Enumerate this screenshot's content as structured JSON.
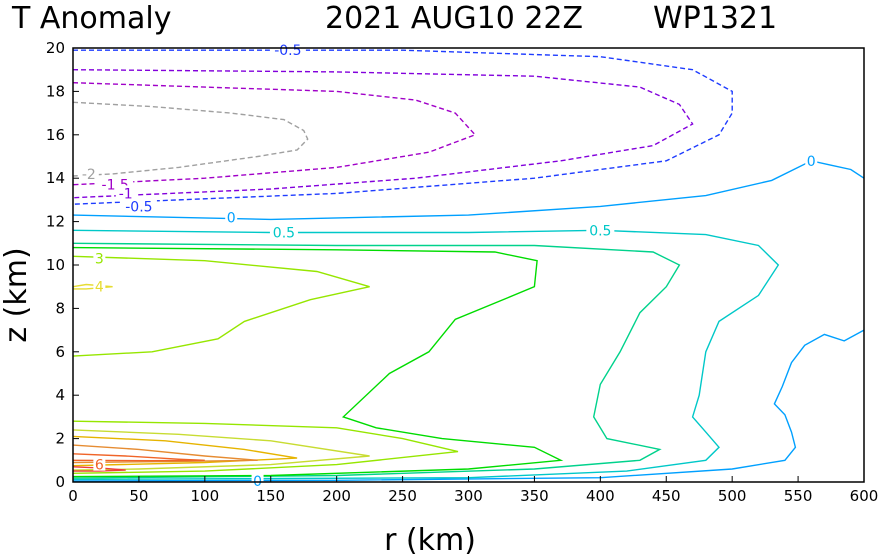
{
  "chart_data": {
    "type": "contour",
    "title_left": "T Anomaly",
    "title_date": "2021 AUG10 22Z",
    "title_storm": "WP1321",
    "xlabel": "r (km)",
    "ylabel": "z (km)",
    "xlim": [
      0,
      600
    ],
    "ylim": [
      0,
      20
    ],
    "xticks": [
      "0",
      "50",
      "100",
      "150",
      "200",
      "250",
      "300",
      "350",
      "400",
      "450",
      "500",
      "550",
      "600"
    ],
    "yticks": [
      "0",
      "2",
      "4",
      "6",
      "8",
      "10",
      "12",
      "14",
      "16",
      "18",
      "20"
    ],
    "contours": [
      {
        "level": "-2",
        "color": "#a0a0a0",
        "dashed": true,
        "points": [
          [
            0,
            17.5
          ],
          [
            60,
            17.3
          ],
          [
            120,
            17.0
          ],
          [
            160,
            16.7
          ],
          [
            175,
            16.2
          ],
          [
            178,
            15.8
          ],
          [
            170,
            15.3
          ],
          [
            140,
            15.0
          ],
          [
            80,
            14.5
          ],
          [
            30,
            14.2
          ],
          [
            0,
            14.1
          ]
        ],
        "labels": [
          {
            "text": "-2",
            "x": 12,
            "y": 14.2
          }
        ]
      },
      {
        "level": "-1.5",
        "color": "#a000c8",
        "dashed": true,
        "points": [
          [
            0,
            18.4
          ],
          [
            100,
            18.2
          ],
          [
            200,
            18.0
          ],
          [
            260,
            17.6
          ],
          [
            290,
            17.0
          ],
          [
            305,
            16.0
          ],
          [
            270,
            15.2
          ],
          [
            200,
            14.5
          ],
          [
            100,
            14.0
          ],
          [
            0,
            13.7
          ]
        ],
        "labels": [
          {
            "text": "-1.5",
            "x": 32,
            "y": 13.7
          }
        ]
      },
      {
        "level": "-1",
        "color": "#8200dc",
        "dashed": true,
        "points": [
          [
            0,
            19.0
          ],
          [
            200,
            18.9
          ],
          [
            350,
            18.7
          ],
          [
            430,
            18.2
          ],
          [
            460,
            17.4
          ],
          [
            470,
            16.5
          ],
          [
            440,
            15.5
          ],
          [
            370,
            14.8
          ],
          [
            260,
            14.0
          ],
          [
            150,
            13.5
          ],
          [
            0,
            13.1
          ]
        ],
        "labels": [
          {
            "text": "-1",
            "x": 40,
            "y": 13.3
          }
        ]
      },
      {
        "level": "-0.5",
        "color": "#1e3cff",
        "dashed": true,
        "points": [
          [
            0,
            19.9
          ],
          [
            250,
            19.9
          ],
          [
            400,
            19.6
          ],
          [
            470,
            19.0
          ],
          [
            500,
            18.0
          ],
          [
            500,
            17.0
          ],
          [
            490,
            16.0
          ],
          [
            450,
            14.8
          ],
          [
            350,
            14.0
          ],
          [
            200,
            13.3
          ],
          [
            0,
            12.8
          ]
        ],
        "labels": [
          {
            "text": "-0.5",
            "x": 50,
            "y": 12.7
          },
          {
            "text": "-0.5",
            "x": 163,
            "y": 19.9
          }
        ]
      },
      {
        "level": "0",
        "color": "#00a0ff",
        "dashed": false,
        "points": [
          [
            0,
            12.3
          ],
          [
            150,
            12.1
          ],
          [
            300,
            12.3
          ],
          [
            400,
            12.7
          ],
          [
            480,
            13.2
          ],
          [
            530,
            13.9
          ],
          [
            550,
            14.5
          ],
          [
            560,
            14.8
          ],
          [
            575,
            14.6
          ],
          [
            590,
            14.4
          ],
          [
            600,
            14.0
          ]
        ],
        "labels": [
          {
            "text": "0",
            "x": 120,
            "y": 12.2
          },
          {
            "text": "0",
            "x": 560,
            "y": 14.8
          }
        ]
      },
      {
        "level": "0",
        "color": "#00a0ff",
        "dashed": false,
        "points": [
          [
            0,
            0.05
          ],
          [
            200,
            0.08
          ],
          [
            400,
            0.2
          ],
          [
            500,
            0.6
          ],
          [
            540,
            1.0
          ],
          [
            548,
            1.6
          ],
          [
            545,
            2.3
          ],
          [
            540,
            3.1
          ],
          [
            532,
            3.6
          ],
          [
            538,
            4.4
          ],
          [
            545,
            5.5
          ],
          [
            555,
            6.3
          ],
          [
            570,
            6.8
          ],
          [
            585,
            6.5
          ],
          [
            600,
            7.0
          ]
        ],
        "labels": [
          {
            "text": "0",
            "x": 140,
            "y": 0.05
          }
        ]
      },
      {
        "level": "0.5",
        "color": "#00c8c8",
        "dashed": false,
        "points": [
          [
            0,
            11.6
          ],
          [
            150,
            11.5
          ],
          [
            300,
            11.5
          ],
          [
            400,
            11.6
          ],
          [
            480,
            11.4
          ],
          [
            520,
            10.9
          ],
          [
            535,
            10.0
          ],
          [
            520,
            8.6
          ],
          [
            490,
            7.4
          ],
          [
            480,
            6.0
          ],
          [
            475,
            4.0
          ],
          [
            470,
            3.0
          ],
          [
            480,
            2.3
          ],
          [
            490,
            1.6
          ],
          [
            480,
            1.0
          ],
          [
            420,
            0.5
          ],
          [
            300,
            0.2
          ],
          [
            0,
            0.12
          ]
        ],
        "labels": [
          {
            "text": "0.5",
            "x": 160,
            "y": 11.5
          },
          {
            "text": "0.5",
            "x": 400,
            "y": 11.6
          }
        ]
      },
      {
        "level": "1",
        "color": "#00d28c",
        "dashed": false,
        "points": [
          [
            0,
            11.0
          ],
          [
            200,
            10.9
          ],
          [
            350,
            10.9
          ],
          [
            440,
            10.6
          ],
          [
            460,
            10.0
          ],
          [
            450,
            9.0
          ],
          [
            430,
            7.8
          ],
          [
            415,
            6.0
          ],
          [
            400,
            4.5
          ],
          [
            395,
            3.0
          ],
          [
            405,
            2.0
          ],
          [
            445,
            1.5
          ],
          [
            430,
            1.0
          ],
          [
            350,
            0.6
          ],
          [
            200,
            0.3
          ],
          [
            0,
            0.18
          ]
        ],
        "labels": []
      },
      {
        "level": "1.5",
        "color": "#00dc00",
        "dashed": false,
        "points": [
          [
            0,
            10.8
          ],
          [
            200,
            10.7
          ],
          [
            320,
            10.6
          ],
          [
            352,
            10.2
          ],
          [
            350,
            9.0
          ],
          [
            330,
            8.5
          ],
          [
            290,
            7.5
          ],
          [
            270,
            6.0
          ],
          [
            240,
            5.0
          ],
          [
            205,
            3.0
          ],
          [
            230,
            2.5
          ],
          [
            280,
            2.0
          ],
          [
            350,
            1.6
          ],
          [
            370,
            1.0
          ],
          [
            300,
            0.6
          ],
          [
            150,
            0.3
          ],
          [
            0,
            0.25
          ]
        ],
        "labels": []
      },
      {
        "level": "2",
        "color": "#96e600",
        "dashed": false,
        "points": [
          [
            0,
            2.8
          ],
          [
            100,
            2.7
          ],
          [
            200,
            2.5
          ],
          [
            250,
            2.0
          ],
          [
            292,
            1.4
          ],
          [
            200,
            0.8
          ],
          [
            100,
            0.5
          ],
          [
            0,
            0.4
          ]
        ],
        "labels": []
      },
      {
        "level": "3",
        "color": "#96e600",
        "dashed": false,
        "points": [
          [
            0,
            10.4
          ],
          [
            100,
            10.2
          ],
          [
            185,
            9.7
          ],
          [
            225,
            9.0
          ],
          [
            180,
            8.4
          ],
          [
            130,
            7.4
          ],
          [
            110,
            6.6
          ],
          [
            60,
            6.0
          ],
          [
            0,
            5.8
          ]
        ],
        "labels": [
          {
            "text": "3",
            "x": 20,
            "y": 10.3
          }
        ]
      },
      {
        "level": "3",
        "color": "#c8dc32",
        "dashed": false,
        "points": [
          [
            0,
            2.4
          ],
          [
            80,
            2.2
          ],
          [
            150,
            1.9
          ],
          [
            225,
            1.2
          ],
          [
            150,
            0.8
          ],
          [
            50,
            0.6
          ],
          [
            0,
            0.55
          ]
        ],
        "labels": []
      },
      {
        "level": "4",
        "color": "#e6dc32",
        "dashed": false,
        "points": [
          [
            0,
            9.0
          ],
          [
            10,
            9.1
          ],
          [
            30,
            9.0
          ],
          [
            10,
            8.9
          ],
          [
            0,
            8.9
          ]
        ],
        "labels": [
          {
            "text": "4",
            "x": 20,
            "y": 9.0
          }
        ]
      },
      {
        "level": "4",
        "color": "#e6b400",
        "dashed": false,
        "points": [
          [
            0,
            2.1
          ],
          [
            70,
            1.9
          ],
          [
            130,
            1.5
          ],
          [
            170,
            1.1
          ],
          [
            100,
            0.9
          ],
          [
            0,
            0.75
          ]
        ],
        "labels": []
      },
      {
        "level": "5",
        "color": "#e68c32",
        "dashed": false,
        "points": [
          [
            0,
            1.7
          ],
          [
            50,
            1.5
          ],
          [
            100,
            1.2
          ],
          [
            140,
            1.0
          ],
          [
            80,
            0.95
          ],
          [
            0,
            0.9
          ]
        ],
        "labels": []
      },
      {
        "level": "6",
        "color": "#f06428",
        "dashed": false,
        "points": [
          [
            0,
            1.3
          ],
          [
            40,
            1.2
          ],
          [
            80,
            1.05
          ],
          [
            100,
            1.0
          ],
          [
            60,
            0.98
          ],
          [
            0,
            1.0
          ]
        ],
        "labels": [
          {
            "text": "6",
            "x": 20,
            "y": 0.8
          }
        ]
      },
      {
        "level": "7",
        "color": "#f03c3c",
        "dashed": false,
        "points": [
          [
            0,
            0.7
          ],
          [
            20,
            0.65
          ],
          [
            40,
            0.55
          ],
          [
            20,
            0.5
          ],
          [
            0,
            0.5
          ]
        ],
        "labels": []
      }
    ]
  }
}
